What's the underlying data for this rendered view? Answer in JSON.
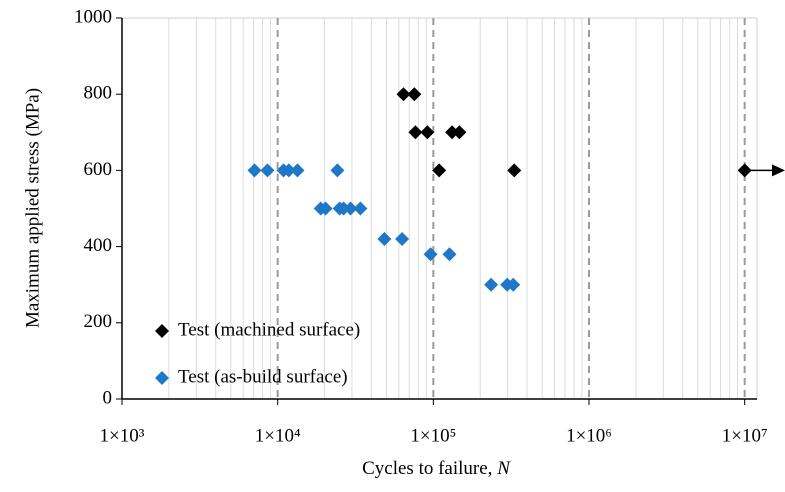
{
  "chart_data": {
    "type": "scatter",
    "x_label": "Cycles to failure,",
    "x_label_var": "N",
    "y_label": "Maximum applied stress (MPa)",
    "x_log": true,
    "xlim": [
      1000,
      12000000
    ],
    "xticks": [
      {
        "value": 1000,
        "label": "1×10³"
      },
      {
        "value": 10000,
        "label": "1×10⁴"
      },
      {
        "value": 100000,
        "label": "1×10⁵"
      },
      {
        "value": 1000000,
        "label": "1×10⁶"
      },
      {
        "value": 10000000,
        "label": "1×10⁷"
      }
    ],
    "ylim": [
      0,
      1000
    ],
    "yticks": [
      0,
      200,
      400,
      600,
      800,
      1000
    ],
    "grid": true,
    "legend": "lower left",
    "series": [
      {
        "name": "Test (machined surface)",
        "color": "#000000",
        "x": [
          64300,
          75500,
          76700,
          91500,
          132000,
          147000,
          109000,
          331000,
          10000000
        ],
        "values": [
          800,
          800,
          700,
          700,
          700,
          700,
          600,
          600,
          600
        ]
      },
      {
        "name": "Test (as-build surface)",
        "color": "#1f77c8",
        "x": [
          7100,
          8600,
          10900,
          11800,
          13400,
          24200,
          18900,
          20300,
          25000,
          26500,
          29400,
          34000,
          48500,
          63000,
          96000,
          127000,
          235000,
          298000,
          326000
        ],
        "values": [
          600,
          600,
          600,
          600,
          600,
          600,
          500,
          500,
          500,
          500,
          500,
          500,
          420,
          420,
          380,
          380,
          300,
          300,
          300
        ]
      }
    ]
  }
}
